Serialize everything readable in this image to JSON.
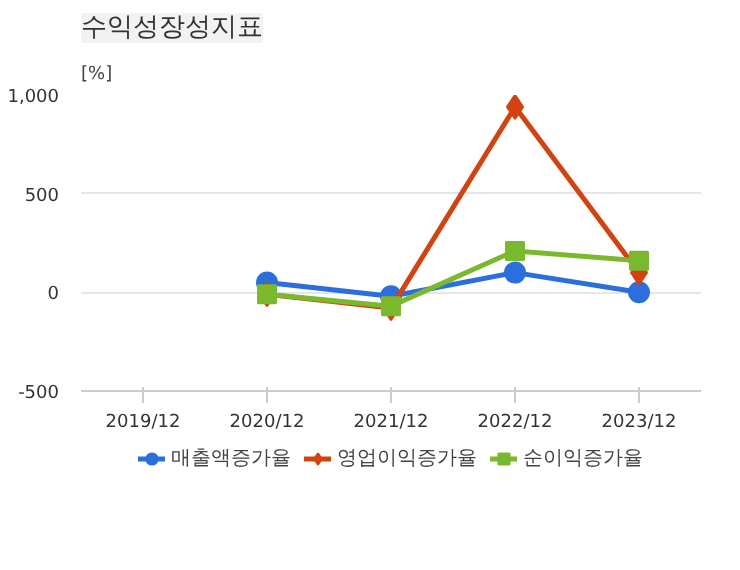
{
  "chart_data": {
    "type": "line",
    "title": "수익성장성지표",
    "ylabel": "[%]",
    "categories": [
      "2019/12",
      "2020/12",
      "2021/12",
      "2022/12",
      "2023/12"
    ],
    "ylim": [
      -500,
      1000
    ],
    "yticks": [
      {
        "value": -500,
        "label": "-500"
      },
      0,
      500,
      {
        "value": 1000,
        "label": "1,000"
      }
    ],
    "grid": "y",
    "legend": "bottom",
    "line_style": "solid",
    "series": [
      {
        "name": "매출액증가율",
        "color": "#2a6fdb",
        "marker": "circle",
        "values": [
          null,
          50,
          -20,
          100,
          0
        ]
      },
      {
        "name": "영업이익증가율",
        "color": "#d4420f",
        "marker": "diamond",
        "values": [
          null,
          -10,
          -80,
          940,
          100
        ]
      },
      {
        "name": "순이익증가율",
        "color": "#7ab82e",
        "marker": "square",
        "values": [
          null,
          -10,
          -70,
          210,
          160
        ]
      }
    ]
  }
}
